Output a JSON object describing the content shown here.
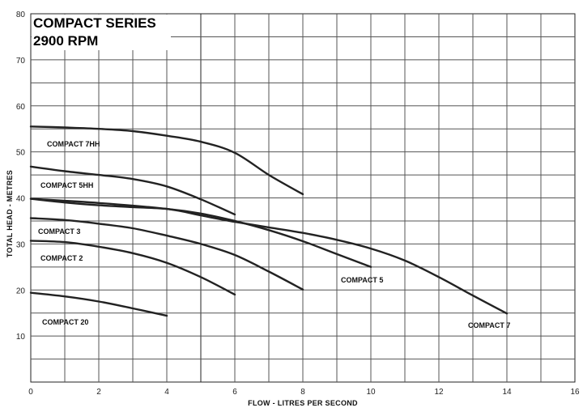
{
  "chart_data": {
    "type": "line",
    "title": "COMPACT SERIES",
    "subtitle": "2900 RPM",
    "xlabel": "FLOW  -  LITRES PER SECOND",
    "ylabel": "TOTAL HEAD  -  METRES",
    "xlim": [
      0,
      16
    ],
    "ylim": [
      0,
      80
    ],
    "xticks": [
      0,
      2,
      4,
      6,
      8,
      10,
      12,
      14,
      16
    ],
    "yticks": [
      10,
      20,
      30,
      40,
      50,
      60,
      70,
      80
    ],
    "grid": true,
    "series": [
      {
        "name": "COMPACT 7HH",
        "x": [
          0,
          1,
          2,
          3,
          4,
          5,
          6,
          7,
          8
        ],
        "y": [
          55.5,
          55.3,
          55.0,
          54.5,
          53.5,
          52.2,
          49.8,
          45.0,
          40.8
        ]
      },
      {
        "name": "COMPACT 5HH",
        "x": [
          0,
          1,
          2,
          3,
          4,
          5,
          6
        ],
        "y": [
          46.8,
          45.8,
          45.0,
          44.1,
          42.5,
          39.7,
          36.4
        ]
      },
      {
        "name": "COMPACT 3",
        "x": [
          0,
          1,
          2,
          3,
          4,
          5,
          6,
          7,
          8,
          9,
          10
        ],
        "y": [
          39.8,
          39.0,
          38.4,
          38.0,
          37.6,
          36.6,
          35.0,
          33.0,
          30.6,
          27.8,
          25.0
        ]
      },
      {
        "name": "COMPACT 5",
        "x": [
          0,
          1,
          2,
          3,
          4,
          5,
          6,
          7,
          8
        ],
        "y": [
          35.6,
          35.2,
          34.4,
          33.4,
          31.8,
          30.0,
          27.6,
          24.0,
          20.1
        ]
      },
      {
        "name": "COMPACT 2",
        "x": [
          0,
          1,
          2,
          3,
          4,
          5,
          6
        ],
        "y": [
          30.7,
          30.4,
          29.4,
          28.0,
          25.9,
          22.8,
          19.0
        ]
      },
      {
        "name": "COMPACT 7",
        "x": [
          0,
          2,
          4,
          5,
          6,
          7,
          8,
          9,
          10,
          11,
          12,
          13,
          14
        ],
        "y": [
          39.8,
          38.9,
          37.6,
          36.2,
          34.8,
          33.6,
          32.4,
          30.9,
          29.0,
          26.4,
          22.8,
          18.8,
          14.9
        ]
      },
      {
        "name": "COMPACT 20",
        "x": [
          0,
          1,
          2,
          3,
          4
        ],
        "y": [
          19.4,
          18.6,
          17.5,
          16.0,
          14.4
        ]
      }
    ]
  }
}
